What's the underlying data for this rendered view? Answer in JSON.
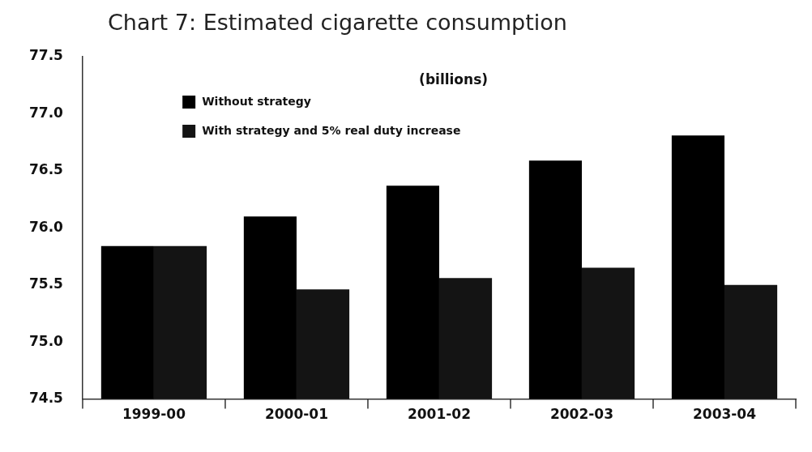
{
  "chart_data": {
    "type": "bar",
    "title": "Chart 7: Estimated cigarette consumption",
    "annotations": [
      "(billions)"
    ],
    "categories": [
      "1999-00",
      "2000-01",
      "2001-02",
      "2002-03",
      "2003-04"
    ],
    "series": [
      {
        "name": "Without strategy",
        "color": "#000000",
        "values": [
          75.84,
          76.1,
          76.37,
          76.59,
          76.81
        ]
      },
      {
        "name": "With strategy and 5% real duty increase",
        "color": "#141414",
        "values": [
          75.84,
          75.46,
          75.56,
          75.65,
          75.5
        ]
      }
    ],
    "ylim": [
      74.5,
      77.5
    ],
    "yticks": [
      74.5,
      {
        "value": 75,
        "label": "75.0"
      },
      75.5,
      {
        "value": 76,
        "label": "76.0"
      },
      76.5,
      {
        "value": 77,
        "label": "77.0"
      },
      77.5
    ],
    "grid": false,
    "legend": "top left"
  }
}
